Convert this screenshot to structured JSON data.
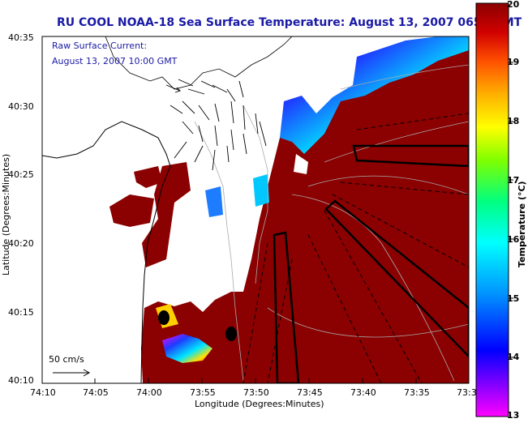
{
  "title": "RU COOL  NOAA-18  Sea Surface Temperature:  August 13, 2007 0657 GMT",
  "current_label": {
    "line1": "Raw Surface Current:",
    "line2": "August 13, 2007 10:00 GMT"
  },
  "axes": {
    "xlabel": "Longitude (Degrees:Minutes)",
    "ylabel": "Latitude (Degrees:Minutes)",
    "x_ticks": [
      "74:10",
      "74:05",
      "74:00",
      "73:55",
      "73:50",
      "73:45",
      "73:40",
      "73:35",
      "73:3"
    ],
    "y_ticks": [
      "40:35",
      "40:30",
      "40:25",
      "40:20",
      "40:15",
      "40:10"
    ]
  },
  "colorbar": {
    "label": "Temperature (°C)",
    "ticks": [
      "20",
      "19",
      "18",
      "17",
      "16",
      "15",
      "14",
      "13"
    ],
    "range": [
      13,
      20
    ]
  },
  "scale_label": "50 cm/s",
  "colors": {
    "title": "#1a1aa6",
    "sst_warm": "#8b0000",
    "sst_cold": "#1e3cff",
    "land": "#ffffff"
  }
}
